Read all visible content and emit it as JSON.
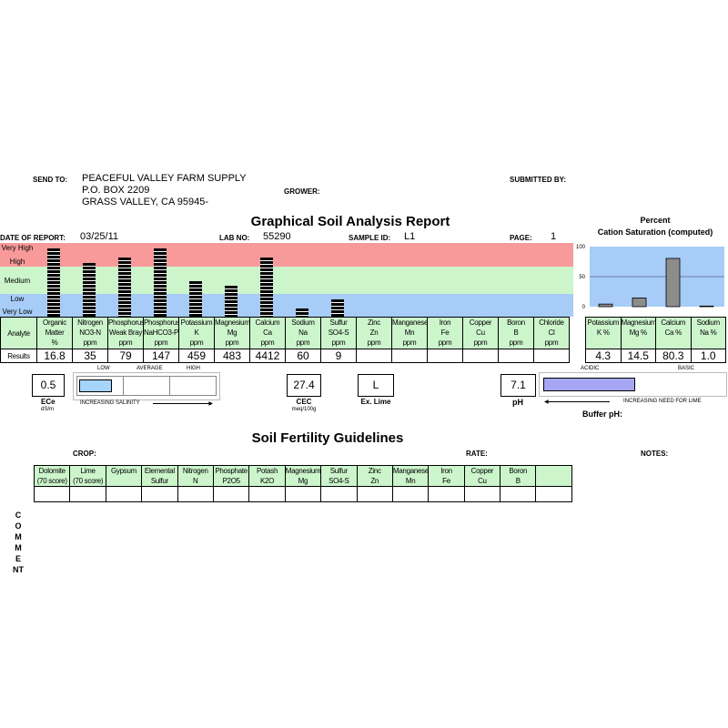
{
  "header": {
    "send_to_label": "SEND TO:",
    "address": [
      "PEACEFUL VALLEY FARM SUPPLY",
      "P.O. BOX 2209",
      "GRASS VALLEY,  CA 95945-"
    ],
    "grower_label": "GROWER:",
    "submitted_by_label": "SUBMITTED BY:",
    "title": "Graphical Soil Analysis Report",
    "date_label": "DATE OF REPORT:",
    "date": "03/25/11",
    "lab_no_label": "LAB NO:",
    "lab_no": "55290",
    "sample_id_label": "SAMPLE ID:",
    "sample_id": "L1",
    "page_label": "PAGE:",
    "page": "1"
  },
  "levels": [
    "Very High",
    "High",
    "Medium",
    "Low",
    "Very Low"
  ],
  "level_colors": {
    "high": "#f99a9a",
    "medium": "#ccf5cc",
    "low": "#a6ccf7"
  },
  "analysis": {
    "row_labels": [
      "Analyte",
      "Results"
    ],
    "columns": [
      {
        "name": "Organic",
        "sub": "Matter",
        "unit": "%",
        "result": "16.8",
        "level_pct": 93
      },
      {
        "name": "Nitrogen",
        "sub": "NO3-N",
        "unit": "ppm",
        "result": "35",
        "level_pct": 73
      },
      {
        "name": "Phosphorus",
        "sub": "Weak Bray",
        "unit": "ppm",
        "result": "79",
        "level_pct": 80
      },
      {
        "name": "Phosphorus",
        "sub": "NaHCO3-P",
        "unit": "ppm",
        "result": "147",
        "level_pct": 93
      },
      {
        "name": "Potassium",
        "sub": "K",
        "unit": "ppm",
        "result": "459",
        "level_pct": 48
      },
      {
        "name": "Magnesium",
        "sub": "Mg",
        "unit": "ppm",
        "result": "483",
        "level_pct": 42
      },
      {
        "name": "Calcium",
        "sub": "Ca",
        "unit": "ppm",
        "result": "4412",
        "level_pct": 80
      },
      {
        "name": "Sodium",
        "sub": "Na",
        "unit": "ppm",
        "result": "60",
        "level_pct": 11
      },
      {
        "name": "Sulfur",
        "sub": "SO4-S",
        "unit": "ppm",
        "result": "9",
        "level_pct": 23
      },
      {
        "name": "Zinc",
        "sub": "Zn",
        "unit": "ppm",
        "result": "",
        "level_pct": 0
      },
      {
        "name": "Manganese",
        "sub": "Mn",
        "unit": "ppm",
        "result": "",
        "level_pct": 0
      },
      {
        "name": "Iron",
        "sub": "Fe",
        "unit": "ppm",
        "result": "",
        "level_pct": 0
      },
      {
        "name": "Copper",
        "sub": "Cu",
        "unit": "ppm",
        "result": "",
        "level_pct": 0
      },
      {
        "name": "Boron",
        "sub": "B",
        "unit": "ppm",
        "result": "",
        "level_pct": 0
      },
      {
        "name": "Chloride",
        "sub": "Cl",
        "unit": "ppm",
        "result": "",
        "level_pct": 0
      }
    ]
  },
  "chart_data": {
    "type": "bar",
    "title": "Percent",
    "subtitle": "Cation Saturation (computed)",
    "categories": [
      "Potassium K %",
      "Magnesium Mg %",
      "Calcium Ca %",
      "Sodium Na %"
    ],
    "values": [
      4.3,
      14.5,
      80.3,
      1.0
    ],
    "yticks": [
      "100",
      "50",
      "0"
    ],
    "ylim": [
      0,
      100
    ],
    "grid": true,
    "bar_color": "#8c8c8c",
    "bg_color": "#a6ccf7"
  },
  "cation_table": [
    {
      "name": "Potassium",
      "sub": "K %",
      "value": "4.3"
    },
    {
      "name": "Magnesium",
      "sub": "Mg %",
      "value": "14.5"
    },
    {
      "name": "Calcium",
      "sub": "Ca %",
      "value": "80.3"
    },
    {
      "name": "Sodium",
      "sub": "Na %",
      "value": "1.0"
    }
  ],
  "salinity": {
    "value": "0.5",
    "label": "ECe",
    "unit": "dS/m",
    "scale": [
      "LOW",
      "AVERAGE",
      "HIGH"
    ],
    "caption": "INCREASING SALINITY",
    "level_pct": 25
  },
  "cec": {
    "value": "27.4",
    "label": "CEC",
    "unit": "meq/100g"
  },
  "lime": {
    "value": "L",
    "label": "Ex. Lime"
  },
  "ph": {
    "value": "7.1",
    "label": "pH",
    "scale": [
      "ACIDIC",
      "BASIC"
    ],
    "caption": "INCREASING NEED FOR LIME",
    "buffer_label": "Buffer pH:",
    "level_pct": 50
  },
  "guidelines": {
    "title": "Soil Fertility Guidelines",
    "crop_label": "CROP:",
    "rate_label": "RATE:",
    "notes_label": "NOTES:",
    "columns": [
      [
        "Dolomite",
        "(70 score)"
      ],
      [
        "Lime",
        "(70 score)"
      ],
      [
        "Gypsum",
        ""
      ],
      [
        "Elemental",
        "Sulfur"
      ],
      [
        "Nitrogen",
        "N"
      ],
      [
        "Phosphate",
        "P2O5"
      ],
      [
        "Potash",
        "K2O"
      ],
      [
        "Magnesium",
        "Mg"
      ],
      [
        "Sulfur",
        "SO4-S"
      ],
      [
        "Zinc",
        "Zn"
      ],
      [
        "Manganese",
        "Mn"
      ],
      [
        "Iron",
        "Fe"
      ],
      [
        "Copper",
        "Cu"
      ],
      [
        "Boron",
        "B"
      ],
      [
        "",
        ""
      ]
    ]
  },
  "comment_label": "COMMENT"
}
